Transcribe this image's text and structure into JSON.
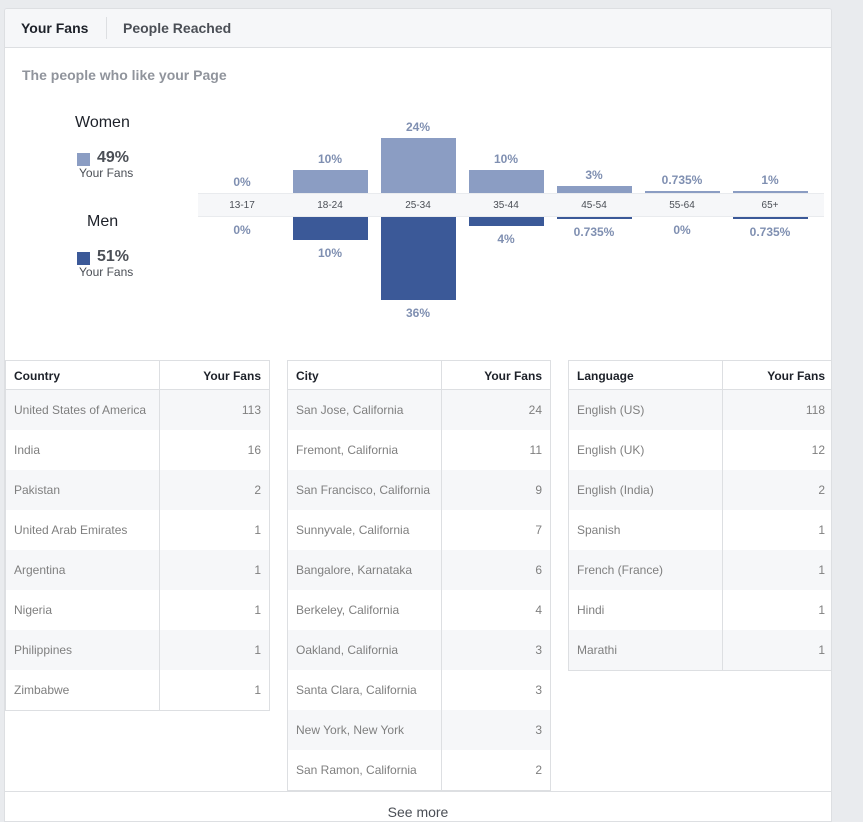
{
  "tabs": [
    {
      "label": "Your Fans",
      "active": true
    },
    {
      "label": "People Reached",
      "active": false
    }
  ],
  "subtitle": "The people who like your Page",
  "legend": {
    "women": {
      "label": "Women",
      "percent": "49%",
      "sublabel": "Your Fans",
      "color": "#8b9dc3"
    },
    "men": {
      "label": "Men",
      "percent": "51%",
      "sublabel": "Your Fans",
      "color": "#3b5998"
    }
  },
  "chart_data": {
    "type": "bar",
    "categories": [
      "13-17",
      "18-24",
      "25-34",
      "35-44",
      "45-54",
      "55-64",
      "65+"
    ],
    "series": [
      {
        "name": "Women",
        "values": [
          0,
          10,
          24,
          10,
          3,
          0.735,
          1
        ],
        "labels": [
          "0%",
          "10%",
          "24%",
          "10%",
          "3%",
          "0.735%",
          "1%"
        ]
      },
      {
        "name": "Men",
        "values": [
          0,
          10,
          36,
          4,
          0.735,
          0,
          0.735
        ],
        "labels": [
          "0%",
          "10%",
          "36%",
          "4%",
          "0.735%",
          "0%",
          "0.735%"
        ]
      }
    ],
    "title": "",
    "xlabel": "",
    "ylabel": ""
  },
  "tables": {
    "country": {
      "headers": [
        "Country",
        "Your Fans"
      ],
      "rows": [
        [
          "United States of America",
          "113"
        ],
        [
          "India",
          "16"
        ],
        [
          "Pakistan",
          "2"
        ],
        [
          "United Arab Emirates",
          "1"
        ],
        [
          "Argentina",
          "1"
        ],
        [
          "Nigeria",
          "1"
        ],
        [
          "Philippines",
          "1"
        ],
        [
          "Zimbabwe",
          "1"
        ]
      ]
    },
    "city": {
      "headers": [
        "City",
        "Your Fans"
      ],
      "rows": [
        [
          "San Jose, California",
          "24"
        ],
        [
          "Fremont, California",
          "11"
        ],
        [
          "San Francisco, California",
          "9"
        ],
        [
          "Sunnyvale, California",
          "7"
        ],
        [
          "Bangalore, Karnataka",
          "6"
        ],
        [
          "Berkeley, California",
          "4"
        ],
        [
          "Oakland, California",
          "3"
        ],
        [
          "Santa Clara, California",
          "3"
        ],
        [
          "New York, New York",
          "3"
        ],
        [
          "San Ramon, California",
          "2"
        ]
      ]
    },
    "language": {
      "headers": [
        "Language",
        "Your Fans"
      ],
      "rows": [
        [
          "English (US)",
          "118"
        ],
        [
          "English (UK)",
          "12"
        ],
        [
          "English (India)",
          "2"
        ],
        [
          "Spanish",
          "1"
        ],
        [
          "French (France)",
          "1"
        ],
        [
          "Hindi",
          "1"
        ],
        [
          "Marathi",
          "1"
        ]
      ]
    }
  },
  "see_more": "See more"
}
